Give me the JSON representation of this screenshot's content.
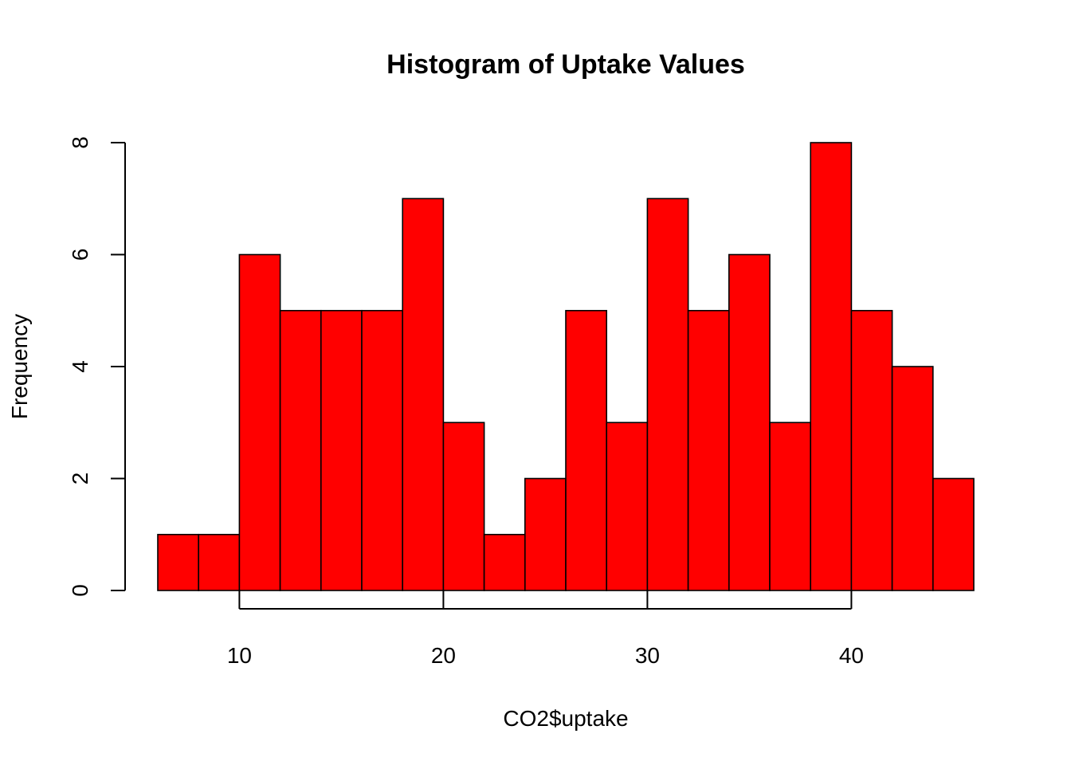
{
  "chart_data": {
    "type": "bar",
    "title": "Histogram of Uptake Values",
    "xlabel": "CO2$uptake",
    "ylabel": "Frequency",
    "bar_color": "#ff0000",
    "border_color": "#000000",
    "xlim": [
      6,
      46
    ],
    "ylim": [
      0,
      8
    ],
    "x_ticks": [
      10,
      20,
      30,
      40
    ],
    "y_ticks": [
      0,
      2,
      4,
      6,
      8
    ],
    "bins": [
      {
        "start": 6,
        "end": 8,
        "count": 1
      },
      {
        "start": 8,
        "end": 10,
        "count": 1
      },
      {
        "start": 10,
        "end": 12,
        "count": 6
      },
      {
        "start": 12,
        "end": 14,
        "count": 5
      },
      {
        "start": 14,
        "end": 16,
        "count": 5
      },
      {
        "start": 16,
        "end": 18,
        "count": 5
      },
      {
        "start": 18,
        "end": 20,
        "count": 7
      },
      {
        "start": 20,
        "end": 22,
        "count": 3
      },
      {
        "start": 22,
        "end": 24,
        "count": 1
      },
      {
        "start": 24,
        "end": 26,
        "count": 2
      },
      {
        "start": 26,
        "end": 28,
        "count": 5
      },
      {
        "start": 28,
        "end": 30,
        "count": 3
      },
      {
        "start": 30,
        "end": 32,
        "count": 7
      },
      {
        "start": 32,
        "end": 34,
        "count": 5
      },
      {
        "start": 34,
        "end": 36,
        "count": 6
      },
      {
        "start": 36,
        "end": 38,
        "count": 3
      },
      {
        "start": 38,
        "end": 40,
        "count": 8
      },
      {
        "start": 40,
        "end": 42,
        "count": 5
      },
      {
        "start": 42,
        "end": 44,
        "count": 4
      },
      {
        "start": 44,
        "end": 46,
        "count": 2
      }
    ]
  }
}
